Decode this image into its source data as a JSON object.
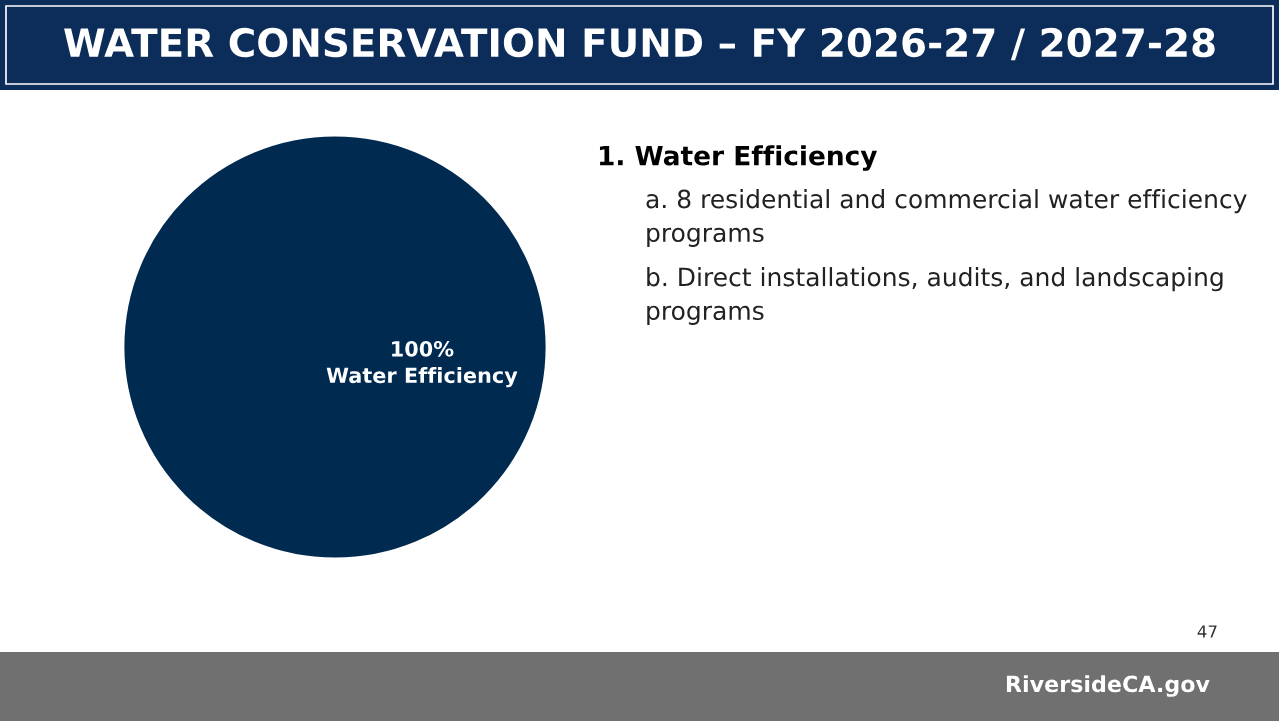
{
  "chart_data": {
    "type": "pie",
    "title": "WATER CONSERVATION FUND – FY 2026-27 / 2027-28",
    "categories": [
      "Water Efficiency"
    ],
    "values": [
      100
    ],
    "colors": [
      "#002a50"
    ],
    "value_labels": [
      "100%"
    ],
    "annotations": [
      "1. Water Efficiency",
      "a. 8 residential and commercial water efficiency programs",
      "b. Direct installations, audits, and landscaping programs",
      "47",
      "RiversideCA.gov"
    ]
  }
}
